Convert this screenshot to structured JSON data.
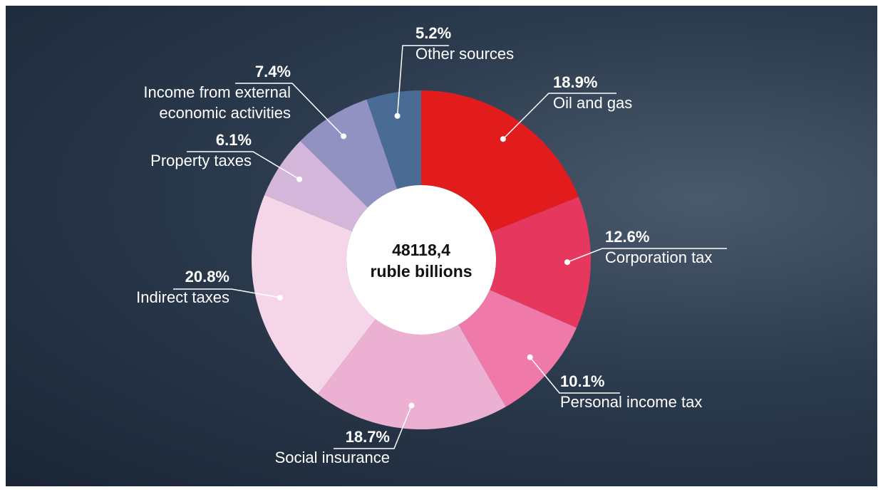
{
  "chart_data": {
    "type": "donut",
    "center_label": [
      "48118,4",
      "ruble billions"
    ],
    "categories": [
      "Oil and gas",
      "Corporation tax",
      "Personal income tax",
      "Social insurance",
      "Indirect taxes",
      "Property taxes",
      "Income from external economic activities",
      "Other sources"
    ],
    "values": [
      18.9,
      12.6,
      10.1,
      18.7,
      20.8,
      6.1,
      7.4,
      5.2
    ],
    "value_labels": [
      "18.9%",
      "12.6%",
      "10.1%",
      "18.7%",
      "20.8%",
      "6.1%",
      "7.4%",
      "5.2%"
    ],
    "colors": [
      "#e21b1c",
      "#e6385f",
      "#ef7aa9",
      "#ecb0d2",
      "#f5d6e8",
      "#d3b6da",
      "#9191c2",
      "#4a6b93"
    ]
  }
}
